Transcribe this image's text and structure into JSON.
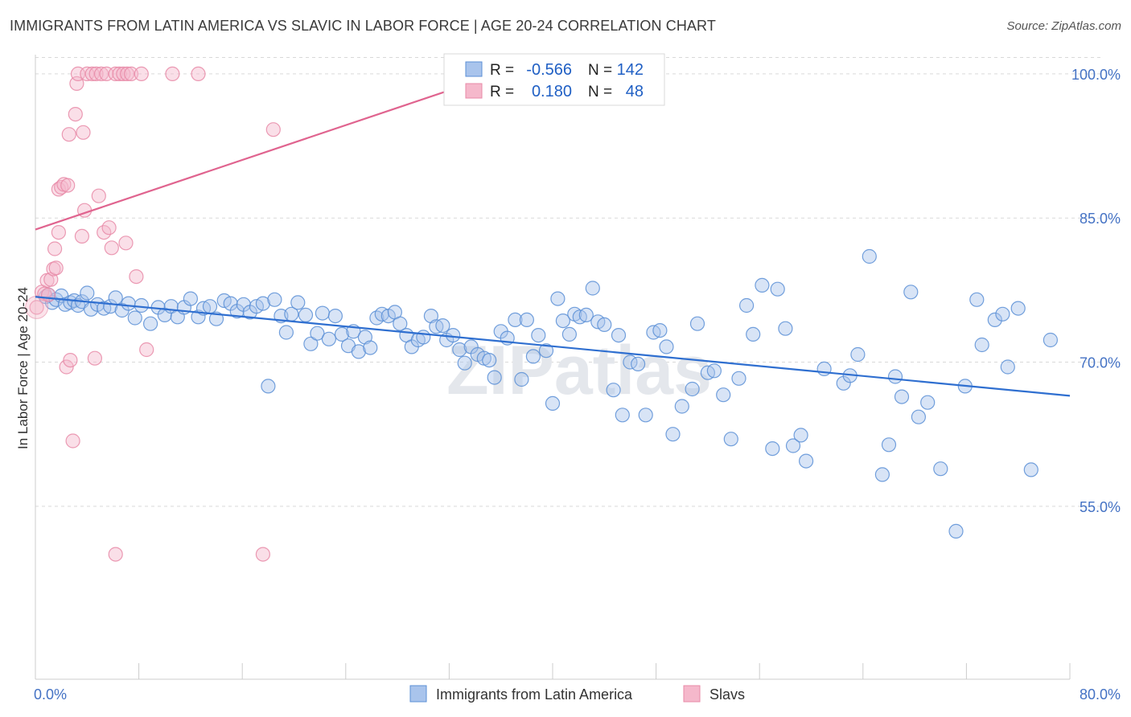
{
  "title": "IMMIGRANTS FROM LATIN AMERICA VS SLAVIC IN LABOR FORCE | AGE 20-24 CORRELATION CHART",
  "source": "Source: ZipAtlas.com",
  "watermark": "ZIPatlas",
  "colors": {
    "blue_fill": "#a9c4ec",
    "blue_stroke": "#5b8fd6",
    "blue_line": "#2f6fd0",
    "pink_fill": "#f5b8cb",
    "pink_stroke": "#e88aa7",
    "pink_line": "#e0648f",
    "grid": "#d9d9d9",
    "tick_label": "#4472c4"
  },
  "legend": {
    "r_label": "R =",
    "n_label": "N =",
    "rows": [
      {
        "series": "blue",
        "r": "-0.566",
        "n": "142"
      },
      {
        "series": "pink",
        "r": "0.180",
        "n": "48"
      }
    ]
  },
  "chart_data": {
    "type": "scatter",
    "xlabel": "",
    "ylabel": "In Labor Force | Age 20-24",
    "xlim": [
      0,
      80
    ],
    "ylim": [
      37,
      102
    ],
    "x_tick_labels": [
      "0.0%",
      "80.0%"
    ],
    "y_ticks": [
      55,
      70,
      85,
      100
    ],
    "y_tick_labels": [
      "55.0%",
      "70.0%",
      "85.0%",
      "100.0%"
    ],
    "grid": true,
    "legend_position": "top-center",
    "series": [
      {
        "name": "Immigrants from Latin America",
        "color": "blue",
        "trend": {
          "x": [
            0,
            80
          ],
          "y": [
            76.8,
            66.5
          ]
        },
        "points": [
          [
            0.8,
            76.8
          ],
          [
            1.0,
            77.0
          ],
          [
            1.3,
            76.2
          ],
          [
            1.6,
            76.5
          ],
          [
            2.0,
            76.9
          ],
          [
            2.3,
            76.0
          ],
          [
            2.7,
            76.2
          ],
          [
            3.0,
            76.4
          ],
          [
            3.3,
            75.9
          ],
          [
            3.6,
            76.3
          ],
          [
            4.0,
            77.2
          ],
          [
            4.3,
            75.5
          ],
          [
            4.8,
            76.0
          ],
          [
            5.3,
            75.6
          ],
          [
            5.8,
            75.8
          ],
          [
            6.2,
            76.7
          ],
          [
            6.7,
            75.4
          ],
          [
            7.2,
            76.1
          ],
          [
            7.7,
            74.6
          ],
          [
            8.2,
            75.9
          ],
          [
            8.9,
            74.0
          ],
          [
            9.5,
            75.7
          ],
          [
            10.0,
            74.9
          ],
          [
            10.5,
            75.8
          ],
          [
            11.0,
            74.7
          ],
          [
            11.5,
            75.7
          ],
          [
            12.0,
            76.6
          ],
          [
            12.6,
            74.7
          ],
          [
            13.0,
            75.6
          ],
          [
            13.5,
            75.8
          ],
          [
            14.0,
            74.5
          ],
          [
            14.6,
            76.4
          ],
          [
            15.1,
            76.1
          ],
          [
            15.6,
            75.3
          ],
          [
            16.1,
            76.0
          ],
          [
            16.6,
            75.2
          ],
          [
            17.1,
            75.8
          ],
          [
            17.6,
            76.1
          ],
          [
            18.0,
            67.5
          ],
          [
            18.5,
            76.5
          ],
          [
            19.0,
            74.8
          ],
          [
            19.4,
            73.1
          ],
          [
            19.8,
            75.0
          ],
          [
            20.3,
            76.2
          ],
          [
            20.9,
            74.9
          ],
          [
            21.3,
            71.9
          ],
          [
            21.8,
            73.0
          ],
          [
            22.2,
            75.1
          ],
          [
            22.7,
            72.4
          ],
          [
            23.2,
            74.8
          ],
          [
            23.7,
            72.9
          ],
          [
            24.2,
            71.7
          ],
          [
            24.6,
            73.2
          ],
          [
            25.0,
            71.1
          ],
          [
            25.5,
            72.6
          ],
          [
            25.9,
            71.5
          ],
          [
            26.4,
            74.6
          ],
          [
            26.8,
            75.0
          ],
          [
            27.3,
            74.8
          ],
          [
            27.8,
            75.2
          ],
          [
            28.2,
            74.0
          ],
          [
            28.7,
            72.8
          ],
          [
            29.1,
            71.6
          ],
          [
            29.6,
            72.3
          ],
          [
            30.0,
            72.6
          ],
          [
            30.6,
            74.8
          ],
          [
            31.0,
            73.7
          ],
          [
            31.5,
            73.8
          ],
          [
            31.8,
            72.3
          ],
          [
            32.3,
            72.8
          ],
          [
            32.8,
            71.3
          ],
          [
            33.2,
            69.9
          ],
          [
            33.7,
            71.6
          ],
          [
            34.2,
            70.8
          ],
          [
            34.7,
            70.4
          ],
          [
            35.1,
            70.2
          ],
          [
            35.5,
            68.4
          ],
          [
            36.0,
            73.2
          ],
          [
            36.5,
            72.5
          ],
          [
            37.1,
            74.4
          ],
          [
            37.6,
            68.2
          ],
          [
            38.0,
            74.4
          ],
          [
            38.5,
            70.6
          ],
          [
            38.9,
            72.8
          ],
          [
            39.5,
            71.2
          ],
          [
            40.0,
            65.7
          ],
          [
            40.4,
            76.6
          ],
          [
            40.8,
            74.3
          ],
          [
            41.3,
            72.9
          ],
          [
            41.7,
            75.0
          ],
          [
            42.1,
            74.7
          ],
          [
            42.6,
            74.9
          ],
          [
            43.1,
            77.7
          ],
          [
            43.5,
            74.2
          ],
          [
            44.0,
            73.9
          ],
          [
            44.7,
            67.1
          ],
          [
            45.1,
            72.8
          ],
          [
            45.4,
            64.5
          ],
          [
            46.0,
            70.0
          ],
          [
            46.6,
            69.8
          ],
          [
            47.2,
            64.5
          ],
          [
            47.8,
            73.1
          ],
          [
            48.3,
            73.3
          ],
          [
            48.8,
            71.6
          ],
          [
            49.3,
            62.5
          ],
          [
            50.0,
            65.4
          ],
          [
            50.8,
            67.2
          ],
          [
            51.2,
            74.0
          ],
          [
            52.0,
            68.9
          ],
          [
            52.5,
            69.1
          ],
          [
            53.2,
            66.6
          ],
          [
            53.8,
            62.0
          ],
          [
            54.4,
            68.3
          ],
          [
            55.0,
            75.9
          ],
          [
            55.5,
            72.9
          ],
          [
            56.2,
            78.0
          ],
          [
            57.0,
            61.0
          ],
          [
            57.4,
            77.6
          ],
          [
            58.0,
            73.5
          ],
          [
            58.6,
            61.3
          ],
          [
            59.2,
            62.4
          ],
          [
            59.6,
            59.7
          ],
          [
            61.0,
            69.3
          ],
          [
            62.5,
            67.8
          ],
          [
            63.0,
            68.6
          ],
          [
            63.6,
            70.8
          ],
          [
            64.5,
            81.0
          ],
          [
            65.5,
            58.3
          ],
          [
            66.0,
            61.4
          ],
          [
            66.5,
            68.5
          ],
          [
            67.0,
            66.4
          ],
          [
            67.7,
            77.3
          ],
          [
            68.3,
            64.3
          ],
          [
            69.0,
            65.8
          ],
          [
            70.0,
            58.9
          ],
          [
            71.2,
            52.4
          ],
          [
            71.9,
            67.5
          ],
          [
            72.8,
            76.5
          ],
          [
            73.2,
            71.8
          ],
          [
            74.2,
            74.4
          ],
          [
            74.8,
            75.0
          ],
          [
            75.2,
            69.5
          ],
          [
            76.0,
            75.6
          ],
          [
            77.0,
            58.8
          ],
          [
            78.5,
            72.3
          ]
        ]
      },
      {
        "name": "Slavs",
        "color": "pink",
        "trend": {
          "x": [
            0,
            38
          ],
          "y": [
            83.8,
            101.0
          ]
        },
        "points": [
          [
            0.1,
            75.7
          ],
          [
            0.5,
            77.3
          ],
          [
            0.7,
            77.1
          ],
          [
            0.9,
            78.5
          ],
          [
            1.0,
            77.0
          ],
          [
            1.2,
            78.6
          ],
          [
            1.4,
            79.7
          ],
          [
            1.5,
            81.8
          ],
          [
            1.6,
            79.8
          ],
          [
            1.8,
            83.5
          ],
          [
            1.8,
            88.0
          ],
          [
            2.0,
            88.2
          ],
          [
            2.2,
            88.5
          ],
          [
            2.4,
            69.5
          ],
          [
            2.5,
            88.4
          ],
          [
            2.6,
            93.7
          ],
          [
            2.7,
            70.2
          ],
          [
            2.9,
            61.8
          ],
          [
            3.1,
            95.8
          ],
          [
            3.2,
            99.0
          ],
          [
            3.3,
            100.0
          ],
          [
            3.6,
            83.1
          ],
          [
            3.7,
            93.9
          ],
          [
            3.8,
            85.8
          ],
          [
            4.0,
            100.0
          ],
          [
            4.4,
            100.0
          ],
          [
            4.6,
            70.4
          ],
          [
            4.7,
            100.0
          ],
          [
            4.9,
            87.3
          ],
          [
            5.1,
            100.0
          ],
          [
            5.3,
            83.5
          ],
          [
            5.5,
            100.0
          ],
          [
            5.7,
            84.0
          ],
          [
            5.9,
            81.9
          ],
          [
            6.2,
            100.0
          ],
          [
            6.2,
            50.0
          ],
          [
            6.5,
            100.0
          ],
          [
            6.8,
            100.0
          ],
          [
            7.0,
            82.4
          ],
          [
            7.1,
            100.0
          ],
          [
            7.4,
            100.0
          ],
          [
            7.8,
            78.9
          ],
          [
            8.2,
            100.0
          ],
          [
            8.6,
            71.3
          ],
          [
            10.6,
            100.0
          ],
          [
            12.6,
            100.0
          ],
          [
            17.6,
            50.0
          ],
          [
            18.4,
            94.2
          ]
        ]
      }
    ]
  },
  "bottom_legend": [
    {
      "series": "blue",
      "label": "Immigrants from Latin America"
    },
    {
      "series": "pink",
      "label": "Slavs"
    }
  ]
}
